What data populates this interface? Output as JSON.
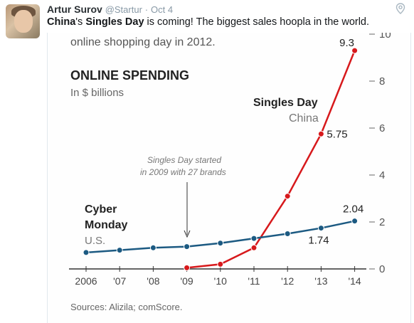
{
  "tweet": {
    "author_name": "Artur Surov",
    "handle": "@Startur",
    "separator": "·",
    "time": "Oct 4",
    "text_parts": [
      "China",
      "'s ",
      "Singles Day",
      " is coming! The biggest sales hoopla in the world."
    ]
  },
  "chart_data": {
    "type": "line",
    "top_caption": "online shopping day in 2012.",
    "title": "ONLINE SPENDING",
    "subtitle": "In $ billions",
    "categories": [
      "2006",
      "'07",
      "'08",
      "'09",
      "'10",
      "'11",
      "'12",
      "'13",
      "'14"
    ],
    "y_ticks": [
      "0",
      "2",
      "4",
      "6",
      "8",
      "10"
    ],
    "ylim": [
      0,
      10
    ],
    "series": [
      {
        "name": "Singles Day",
        "sub": "China",
        "color": "#d7191c",
        "values": [
          null,
          null,
          null,
          0.05,
          0.2,
          0.9,
          3.1,
          5.75,
          9.3
        ]
      },
      {
        "name": "Cyber Monday",
        "name_line2": "",
        "sub": "U.S.",
        "color": "#1c5a82",
        "values": [
          0.7,
          0.8,
          0.9,
          0.95,
          1.1,
          1.3,
          1.5,
          1.74,
          2.04
        ]
      }
    ],
    "labels": {
      "singles_top": "9.3",
      "singles_2013": "5.75",
      "cyber_2013": "1.74",
      "cyber_2014": "2.04"
    },
    "annotation": {
      "line1": "Singles Day started",
      "line2": "in 2009 with 27 brands"
    },
    "legend_left": {
      "line1": "Cyber",
      "line2": "Monday",
      "sub": "U.S."
    },
    "source": "Sources: Alizila; comScore."
  }
}
